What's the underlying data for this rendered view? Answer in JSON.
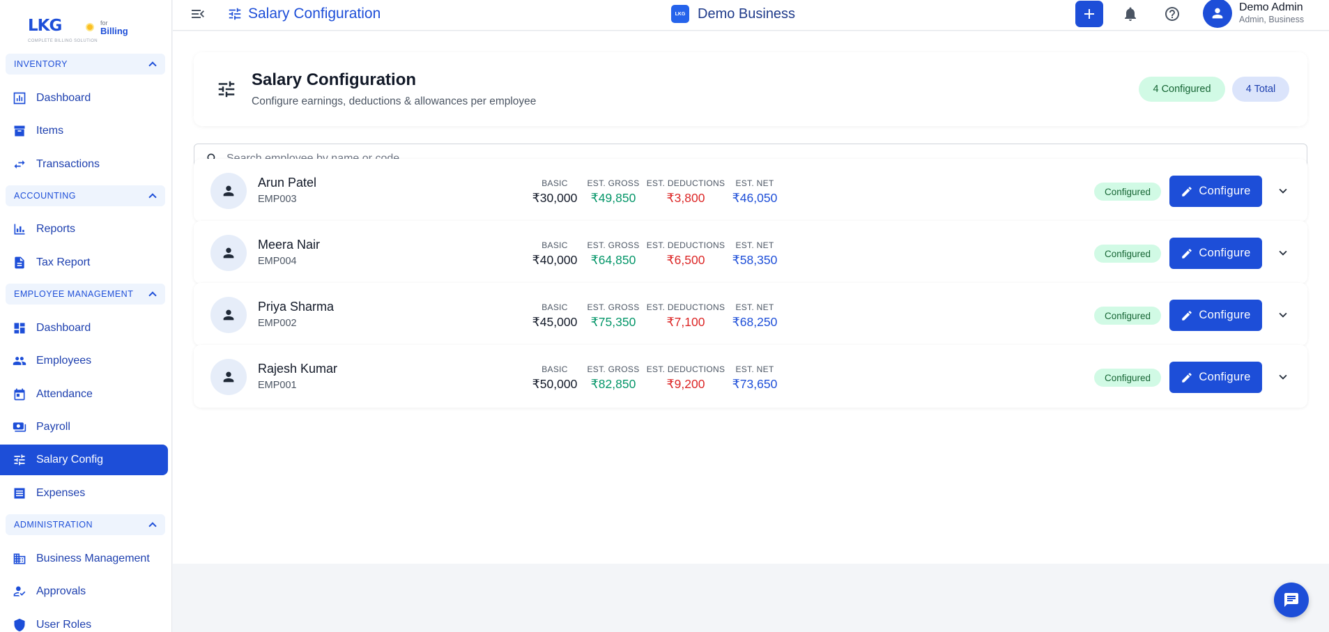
{
  "brand": {
    "name": "LKG",
    "tagline": "COMPLETE BILLING SOLUTION",
    "for": "for",
    "billing": "Billing"
  },
  "sidebar": {
    "sections": [
      {
        "label": "INVENTORY"
      },
      {
        "label": "ACCOUNTING"
      },
      {
        "label": "EMPLOYEE MANAGEMENT"
      },
      {
        "label": "ADMINISTRATION"
      }
    ],
    "items": [
      {
        "label": "Dashboard",
        "icon": "bar-chart-icon"
      },
      {
        "label": "Items",
        "icon": "archive-icon"
      },
      {
        "label": "Transactions",
        "icon": "swap-icon"
      },
      {
        "label": "Reports",
        "icon": "chart-icon"
      },
      {
        "label": "Tax Report",
        "icon": "document-icon"
      },
      {
        "label": "Dashboard",
        "icon": "grid-icon"
      },
      {
        "label": "Employees",
        "icon": "people-icon"
      },
      {
        "label": "Attendance",
        "icon": "calendar-icon"
      },
      {
        "label": "Payroll",
        "icon": "money-icon"
      },
      {
        "label": "Salary Config",
        "icon": "sliders-icon",
        "active": true
      },
      {
        "label": "Expenses",
        "icon": "list-icon"
      },
      {
        "label": "Business Management",
        "icon": "building-icon"
      },
      {
        "label": "Approvals",
        "icon": "approval-icon"
      },
      {
        "label": "User Roles",
        "icon": "shield-icon"
      }
    ]
  },
  "topbar": {
    "title": "Salary Configuration",
    "business_logo": "LKG",
    "business_name": "Demo Business",
    "user_name": "Demo Admin",
    "user_role": "Admin, Business"
  },
  "header": {
    "title": "Salary Configuration",
    "subtitle": "Configure earnings, deductions & allowances per employee",
    "configured_pill": "4 Configured",
    "total_pill": "4 Total"
  },
  "search": {
    "placeholder": "Search employee by name or code..."
  },
  "stat_labels": {
    "basic": "BASIC",
    "gross": "EST. GROSS",
    "deductions": "EST. DEDUCTIONS",
    "net": "EST. NET"
  },
  "employees": [
    {
      "name": "Arun Patel",
      "code": "EMP003",
      "basic": "₹30,000",
      "gross": "₹49,850",
      "deductions": "₹3,800",
      "net": "₹46,050",
      "status": "Configured",
      "action": "Configure"
    },
    {
      "name": "Meera Nair",
      "code": "EMP004",
      "basic": "₹40,000",
      "gross": "₹64,850",
      "deductions": "₹6,500",
      "net": "₹58,350",
      "status": "Configured",
      "action": "Configure"
    },
    {
      "name": "Priya Sharma",
      "code": "EMP002",
      "basic": "₹45,000",
      "gross": "₹75,350",
      "deductions": "₹7,100",
      "net": "₹68,250",
      "status": "Configured",
      "action": "Configure"
    },
    {
      "name": "Rajesh Kumar",
      "code": "EMP001",
      "basic": "₹50,000",
      "gross": "₹82,850",
      "deductions": "₹9,200",
      "net": "₹73,650",
      "status": "Configured",
      "action": "Configure"
    }
  ],
  "colors": {
    "primary": "#1d4ed8",
    "success": "#059669",
    "danger": "#dc2626"
  }
}
